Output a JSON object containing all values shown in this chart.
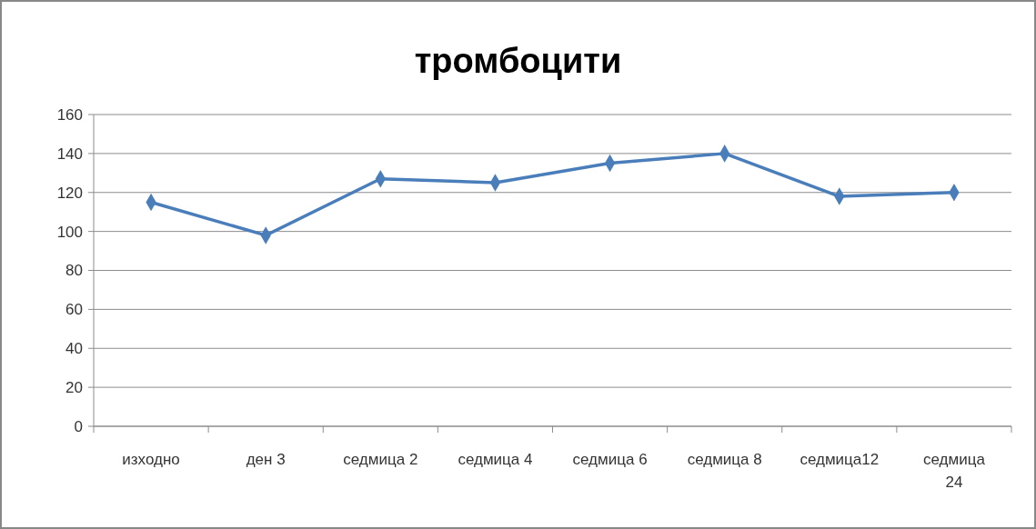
{
  "chart_data": {
    "type": "line",
    "title": "тромбоцити",
    "categories": [
      "изходно",
      "ден 3",
      "седмица 2",
      "седмица 4",
      "седмица 6",
      "седмица 8",
      "седмица12",
      "седмица 24"
    ],
    "series": [
      {
        "color": "#4a7ebb",
        "values": [
          115,
          98,
          127,
          125,
          135,
          140,
          118,
          120
        ]
      }
    ],
    "ylim": [
      0,
      160
    ],
    "yticks": [
      0,
      20,
      40,
      60,
      80,
      100,
      120,
      140,
      160
    ],
    "grid": "y",
    "marker": "diamond"
  }
}
